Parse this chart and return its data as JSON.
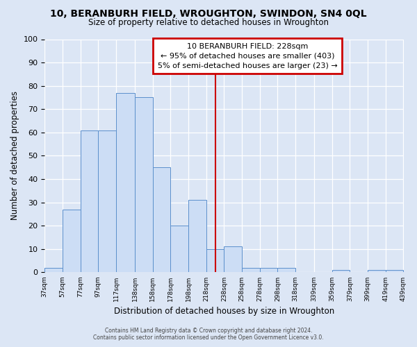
{
  "title": "10, BERANBURH FIELD, WROUGHTON, SWINDON, SN4 0QL",
  "subtitle": "Size of property relative to detached houses in Wroughton",
  "xlabel": "Distribution of detached houses by size in Wroughton",
  "ylabel": "Number of detached properties",
  "bar_values": [
    2,
    27,
    61,
    61,
    77,
    75,
    45,
    20,
    31,
    10,
    11,
    2,
    2,
    2,
    0,
    0,
    1,
    0,
    1,
    1
  ],
  "bin_edges": [
    37,
    57,
    77,
    97,
    117,
    138,
    158,
    178,
    198,
    218,
    238,
    258,
    278,
    298,
    318,
    339,
    359,
    379,
    399,
    419,
    439
  ],
  "tick_labels": [
    "37sqm",
    "57sqm",
    "77sqm",
    "97sqm",
    "117sqm",
    "138sqm",
    "158sqm",
    "178sqm",
    "198sqm",
    "218sqm",
    "238sqm",
    "258sqm",
    "278sqm",
    "298sqm",
    "318sqm",
    "339sqm",
    "359sqm",
    "379sqm",
    "399sqm",
    "419sqm",
    "439sqm"
  ],
  "property_size": 228,
  "vline_color": "#cc0000",
  "bar_facecolor": "#ccddf5",
  "bar_edgecolor": "#5b8fcc",
  "background_color": "#dce6f5",
  "plot_background": "#dce6f5",
  "ylim": [
    0,
    100
  ],
  "yticks": [
    0,
    10,
    20,
    30,
    40,
    50,
    60,
    70,
    80,
    90,
    100
  ],
  "annotation_title": "10 BERANBURH FIELD: 228sqm",
  "annotation_line1": "← 95% of detached houses are smaller (403)",
  "annotation_line2": "5% of semi-detached houses are larger (23) →",
  "annotation_box_color": "#cc0000",
  "footer_line1": "Contains HM Land Registry data © Crown copyright and database right 2024.",
  "footer_line2": "Contains public sector information licensed under the Open Government Licence v3.0."
}
